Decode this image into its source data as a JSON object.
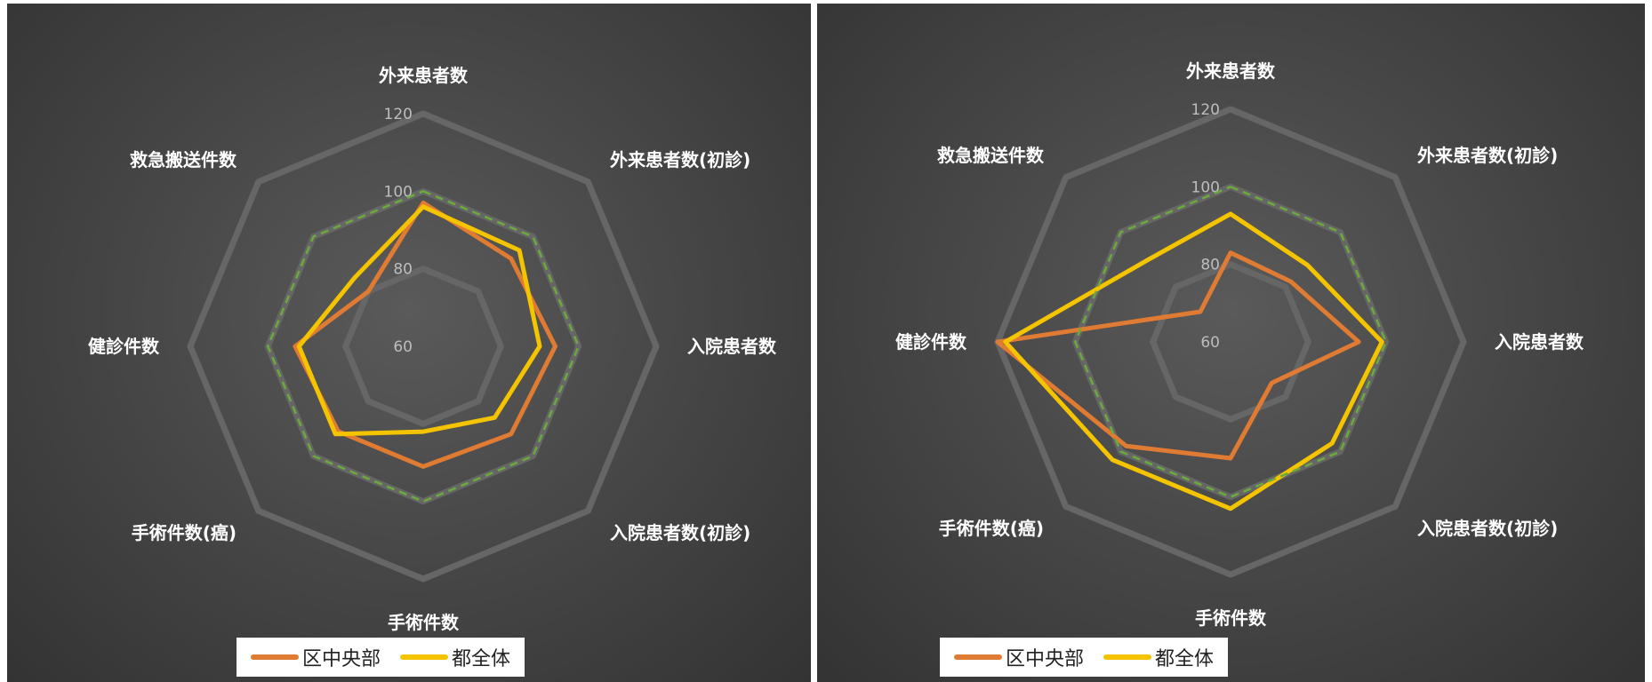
{
  "chart_data": [
    {
      "type": "radar",
      "categories": [
        "外来患者数",
        "外来患者数(初診)",
        "入院患者数",
        "入院患者数(初診)",
        "手術件数",
        "手術件数(癌)",
        "健診件数",
        "救急搬送件数"
      ],
      "rlim": [
        60,
        120
      ],
      "rticks": [
        60,
        80,
        100,
        120
      ],
      "grid": true,
      "legend_position": "bottom",
      "series": [
        {
          "name": "区中央部",
          "color": "#e07b33",
          "values": [
            97,
            92,
            94,
            92,
            91,
            91,
            93,
            80
          ]
        },
        {
          "name": "都全体",
          "color": "#f5c400",
          "values": [
            96,
            95,
            90,
            86,
            82,
            92,
            92,
            85
          ]
        },
        {
          "name": "",
          "color": "#6aab3c",
          "dashed": true,
          "values": [
            100,
            100,
            100,
            100,
            100,
            100,
            100,
            100
          ]
        }
      ]
    },
    {
      "type": "radar",
      "categories": [
        "外来患者数",
        "外来患者数(初診)",
        "入院患者数",
        "入院患者数(初診)",
        "手術件数",
        "手術件数(癌)",
        "健診件数",
        "救急搬送件数"
      ],
      "rlim": [
        60,
        120
      ],
      "rticks": [
        60,
        80,
        100,
        120
      ],
      "grid": true,
      "legend_position": "bottom",
      "series": [
        {
          "name": "区中央部",
          "color": "#e07b33",
          "values": [
            83,
            82,
            93,
            75,
            90,
            98,
            120,
            71
          ]
        },
        {
          "name": "都全体",
          "color": "#f5c400",
          "values": [
            93,
            88,
            99,
            97,
            103,
            103,
            118,
            90
          ]
        },
        {
          "name": "",
          "color": "#6aab3c",
          "dashed": true,
          "values": [
            100,
            100,
            100,
            100,
            100,
            100,
            100,
            100
          ]
        }
      ]
    }
  ]
}
